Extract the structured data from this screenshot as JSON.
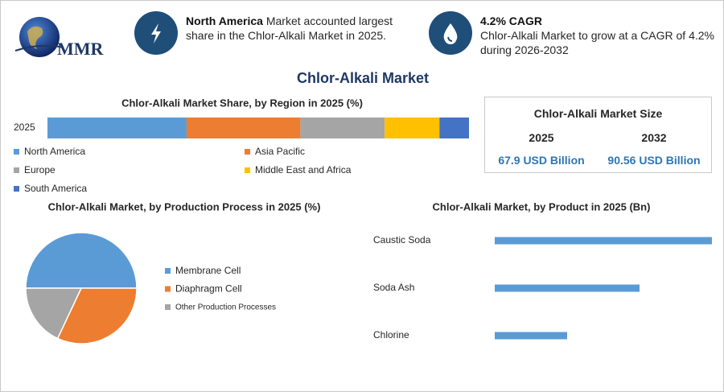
{
  "header": {
    "logo": "MMR",
    "left": {
      "highlight": "North America",
      "text": "Market accounted largest share in the Chlor-Alkali Market in 2025."
    },
    "right": {
      "highlight": "4.2% CAGR",
      "text": "Chlor-Alkali Market to grow at a CAGR of 4.2% during 2026-2032"
    }
  },
  "title": "Chlor-Alkali Market",
  "market_size": {
    "title": "Chlor-Alkali Market Size",
    "columns": [
      {
        "year": "2025",
        "value": "67.9 USD Billion"
      },
      {
        "year": "2032",
        "value": "90.56 USD Billion"
      }
    ]
  },
  "chart_data": [
    {
      "type": "stacked-bar",
      "title": "Chlor-Alkali Market Share, by Region in 2025 (%)",
      "categories": [
        "2025"
      ],
      "xlim": [
        0,
        100
      ],
      "series": [
        {
          "name": "North America",
          "color": "#5b9bd5",
          "values": [
            33
          ]
        },
        {
          "name": "Asia Pacific",
          "color": "#ed7d31",
          "values": [
            27
          ]
        },
        {
          "name": "Europe",
          "color": "#a5a5a5",
          "values": [
            20
          ]
        },
        {
          "name": "Middle East and Africa",
          "color": "#ffc000",
          "values": [
            13
          ]
        },
        {
          "name": "South America",
          "color": "#4472c4",
          "values": [
            7
          ]
        }
      ]
    },
    {
      "type": "pie",
      "title": "Chlor-Alkali Market, by Production Process in 2025 (%)",
      "categories": [
        "Membrane Cell",
        "Diaphragm Cell",
        "Other Production Processes"
      ],
      "values": [
        50,
        32,
        18
      ],
      "colors": [
        "#5b9bd5",
        "#ed7d31",
        "#a5a5a5"
      ]
    },
    {
      "type": "hbar",
      "title": "Chlor-Alkali Market, by Product in 2025 (Bn)",
      "categories": [
        "Caustic Soda",
        "Soda Ash",
        "Chlorine"
      ],
      "values": [
        30,
        20,
        10
      ],
      "color": "#5b9bd5",
      "xlim": [
        0,
        30
      ]
    }
  ]
}
